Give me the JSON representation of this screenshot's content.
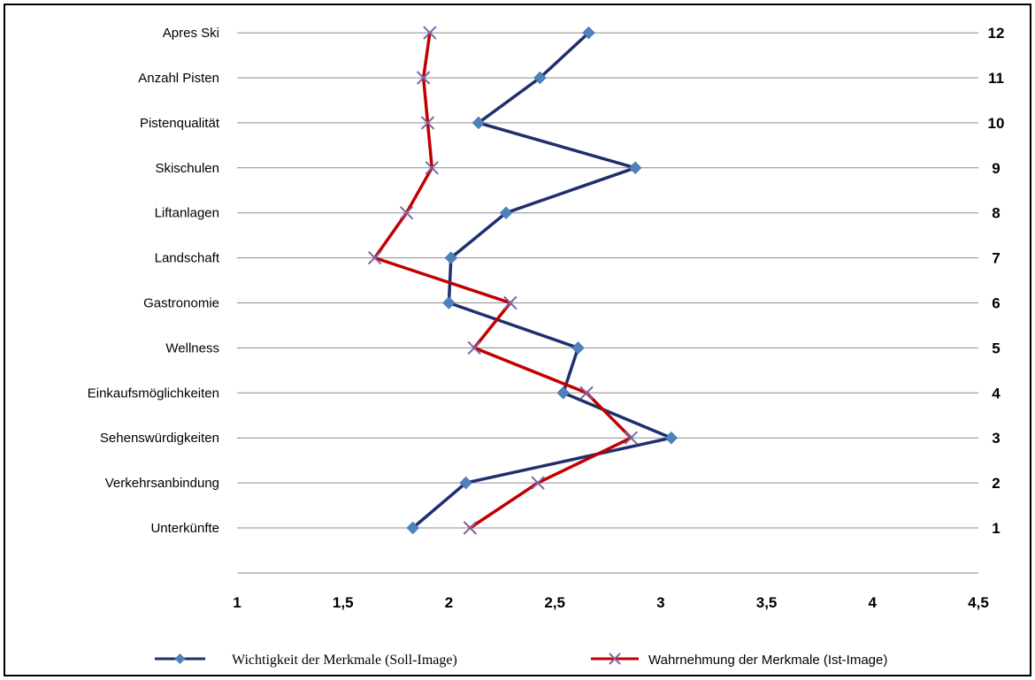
{
  "chart_data": {
    "type": "line",
    "orientation": "horizontal-values",
    "categories": [
      "Unterkünfte",
      "Verkehrsanbindung",
      "Sehenswürdigkeiten",
      "Einkaufsmöglichkeiten",
      "Wellness",
      "Gastronomie",
      "Landschaft",
      "Liftanlagen",
      "Skischulen",
      "Pistenqualität",
      "Anzahl Pisten",
      "Apres Ski"
    ],
    "category_numbers": [
      "1",
      "2",
      "3",
      "4",
      "5",
      "6",
      "7",
      "8",
      "9",
      "10",
      "11",
      "12"
    ],
    "xlim": [
      1,
      4.5
    ],
    "xticks": [
      "1",
      "1,5",
      "2",
      "2,5",
      "3",
      "3,5",
      "4",
      "4,5"
    ],
    "xtick_values": [
      1,
      1.5,
      2,
      2.5,
      3,
      3.5,
      4,
      4.5
    ],
    "grid": "horizontal",
    "legend_position": "bottom",
    "series": [
      {
        "name": "Wichtigkeit der Merkmale (Soll-Image)",
        "color": "#1f2f6e",
        "marker": "diamond",
        "marker_color": "#4f81bd",
        "values": [
          1.83,
          2.08,
          3.05,
          2.54,
          2.61,
          2.0,
          2.01,
          2.27,
          2.88,
          2.14,
          2.43,
          2.66
        ]
      },
      {
        "name": "Wahrnehmung der Merkmale (Ist-Image)",
        "color": "#c00000",
        "marker": "x",
        "marker_color": "#8064a2",
        "values": [
          2.1,
          2.42,
          2.86,
          2.65,
          2.12,
          2.29,
          1.65,
          1.8,
          1.92,
          1.9,
          1.88,
          1.91
        ]
      }
    ]
  }
}
